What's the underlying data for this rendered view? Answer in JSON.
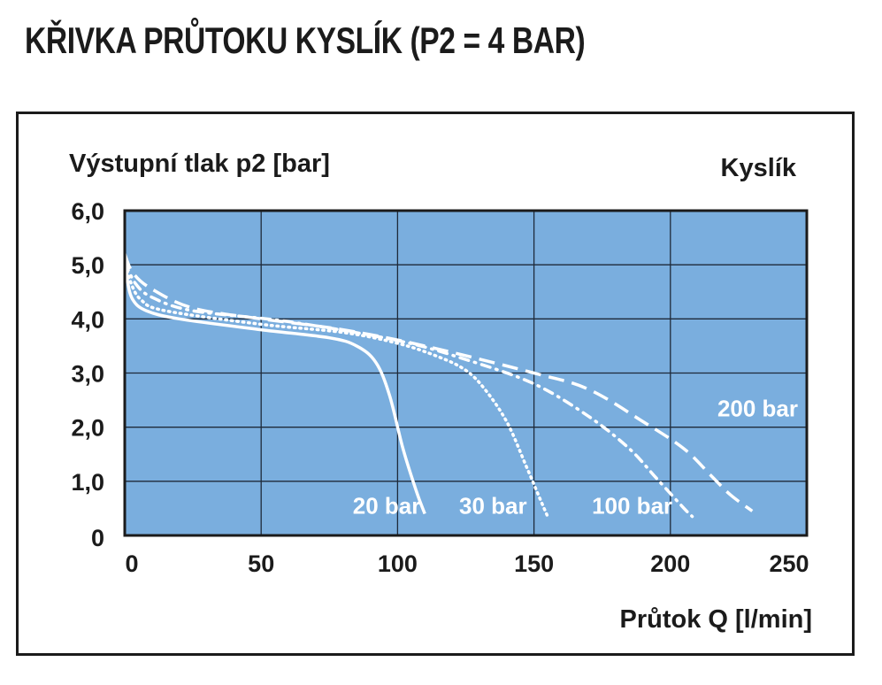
{
  "page_title": "KŘIVKA PRŮTOKU KYSLÍK (P2 = 4 BAR)",
  "colors": {
    "plot_background": "#7aaede",
    "grid": "#1e2a3a",
    "curve": "#ffffff",
    "text": "#1b1b1b"
  },
  "chart_data": {
    "type": "line",
    "title": "KŘIVKA PRŮTOKU KYSLÍK (P2 = 4 BAR)",
    "subtitle": "Kyslík",
    "xlabel": "Průtok Q [l/min]",
    "ylabel": "Výstupní tlak p2 [bar]",
    "xlim": [
      0,
      250
    ],
    "ylim": [
      0,
      6
    ],
    "x_ticks": [
      0,
      50,
      100,
      150,
      200,
      250
    ],
    "x_tick_labels": [
      "0",
      "50",
      "100",
      "150",
      "200",
      "250"
    ],
    "y_ticks": [
      0,
      1,
      2,
      3,
      4,
      5,
      6
    ],
    "y_tick_labels": [
      "0",
      "1,0",
      "2,0",
      "3,0",
      "4,0",
      "5,0",
      "6,0"
    ],
    "grid": true,
    "series": [
      {
        "name": "20 bar",
        "style": "solid",
        "points": [
          [
            0,
            5.2
          ],
          [
            1,
            4.7
          ],
          [
            3,
            4.35
          ],
          [
            8,
            4.15
          ],
          [
            20,
            4.0
          ],
          [
            50,
            3.8
          ],
          [
            75,
            3.65
          ],
          [
            85,
            3.5
          ],
          [
            92,
            3.2
          ],
          [
            97,
            2.6
          ],
          [
            102,
            1.6
          ],
          [
            107,
            0.8
          ],
          [
            110,
            0.4
          ]
        ]
      },
      {
        "name": "30 bar",
        "style": "dotted",
        "points": [
          [
            0,
            5.1
          ],
          [
            2,
            4.7
          ],
          [
            6,
            4.35
          ],
          [
            15,
            4.15
          ],
          [
            50,
            3.9
          ],
          [
            80,
            3.75
          ],
          [
            100,
            3.55
          ],
          [
            115,
            3.3
          ],
          [
            125,
            3.05
          ],
          [
            132,
            2.7
          ],
          [
            140,
            2.1
          ],
          [
            147,
            1.3
          ],
          [
            152,
            0.7
          ],
          [
            155,
            0.35
          ]
        ]
      },
      {
        "name": "100 bar",
        "style": "dash-dot",
        "points": [
          [
            0,
            5.05
          ],
          [
            4,
            4.65
          ],
          [
            10,
            4.4
          ],
          [
            25,
            4.15
          ],
          [
            60,
            3.95
          ],
          [
            100,
            3.6
          ],
          [
            125,
            3.25
          ],
          [
            150,
            2.8
          ],
          [
            170,
            2.2
          ],
          [
            185,
            1.6
          ],
          [
            195,
            1.05
          ],
          [
            205,
            0.5
          ],
          [
            208,
            0.35
          ]
        ]
      },
      {
        "name": "200 bar",
        "style": "dashed",
        "points": [
          [
            0,
            5.2
          ],
          [
            3,
            4.85
          ],
          [
            10,
            4.55
          ],
          [
            25,
            4.2
          ],
          [
            50,
            4.0
          ],
          [
            80,
            3.8
          ],
          [
            110,
            3.5
          ],
          [
            150,
            3.0
          ],
          [
            170,
            2.7
          ],
          [
            190,
            2.1
          ],
          [
            205,
            1.6
          ],
          [
            215,
            1.1
          ],
          [
            222,
            0.75
          ],
          [
            230,
            0.45
          ]
        ]
      }
    ],
    "legend": "inline labels"
  }
}
